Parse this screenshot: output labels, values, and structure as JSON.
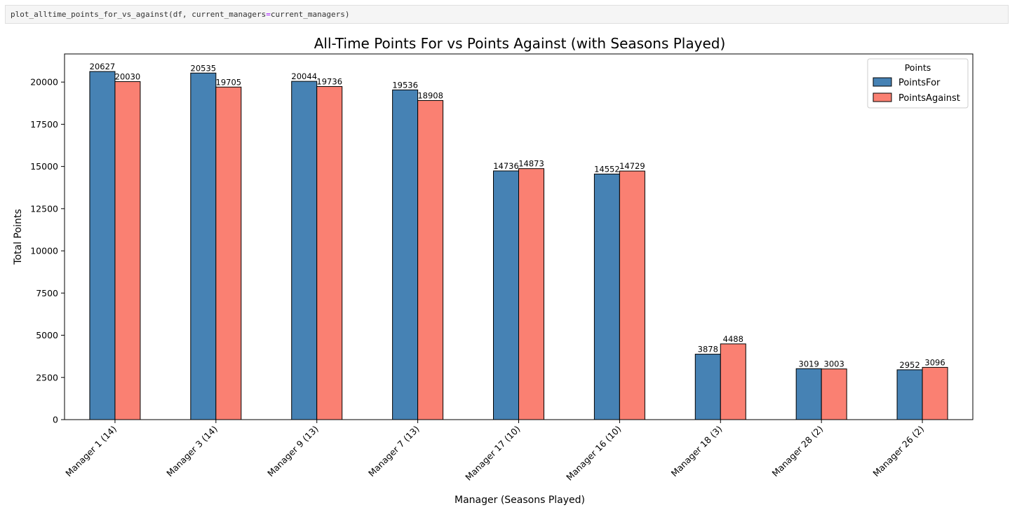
{
  "code_cell": {
    "before": "plot_alltime_points_for_vs_against(df, current_managers",
    "operator": "=",
    "after": "current_managers)"
  },
  "chart_data": {
    "type": "bar",
    "title": "All-Time Points For vs Points Against (with Seasons Played)",
    "xlabel": "Manager (Seasons Played)",
    "ylabel": "Total Points",
    "ylim": [
      0,
      21667
    ],
    "yticks": [
      0,
      2500,
      5000,
      7500,
      10000,
      12500,
      15000,
      17500,
      20000
    ],
    "grid": false,
    "legend_position": "top-right",
    "legend_title": "Points",
    "categories": [
      "Manager 1 (14)",
      "Manager 3 (14)",
      "Manager 9 (13)",
      "Manager 7 (13)",
      "Manager 17 (10)",
      "Manager 16 (10)",
      "Manager 18 (3)",
      "Manager 28 (2)",
      "Manager 26 (2)"
    ],
    "series": [
      {
        "name": "PointsFor",
        "color": "#4682b4",
        "values": [
          20627,
          20535,
          20044,
          19536,
          14736,
          14552,
          3878,
          3019,
          2952
        ]
      },
      {
        "name": "PointsAgainst",
        "color": "#fa8072",
        "values": [
          20030,
          19705,
          19736,
          18908,
          14873,
          14729,
          4488,
          3003,
          3096
        ]
      }
    ]
  }
}
